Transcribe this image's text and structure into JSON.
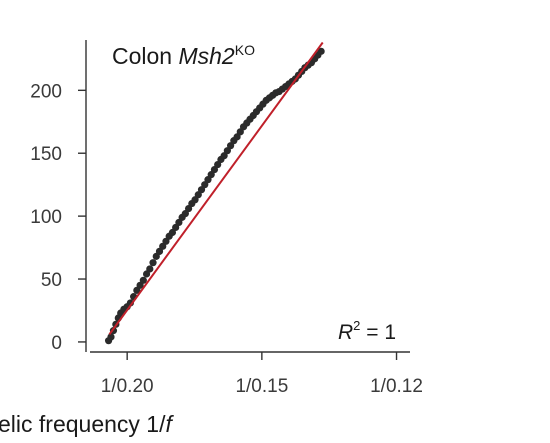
{
  "chart_data": {
    "type": "scatter",
    "title_prefix": "Colon ",
    "title_italic": "Msh2",
    "title_superscript": "KO",
    "xlabel_prefix": "elic frequency 1/",
    "xlabel_italic": "f",
    "ylabel": "",
    "x_ticks": [
      {
        "value": 5.0,
        "label": "1/0.20"
      },
      {
        "value": 6.6667,
        "label": "1/0.15"
      },
      {
        "value": 8.3333,
        "label": "1/0.12"
      }
    ],
    "y_ticks": [
      0,
      50,
      100,
      150,
      200
    ],
    "xlim": [
      4.54,
      8.5
    ],
    "ylim": [
      -8,
      240
    ],
    "annotation_r": "R",
    "annotation_sup": "2",
    "annotation_rest": " = 1",
    "colors": {
      "points": "#2b2b2b",
      "fit": "#c0202a",
      "axis": "#333333"
    },
    "series": [
      {
        "values": [
          [
            4.77,
            1
          ],
          [
            4.8,
            4
          ],
          [
            4.83,
            9
          ],
          [
            4.86,
            14
          ],
          [
            4.89,
            19
          ],
          [
            4.92,
            23
          ],
          [
            4.96,
            26
          ],
          [
            5.0,
            28
          ],
          [
            5.04,
            31
          ],
          [
            5.08,
            36
          ],
          [
            5.12,
            41
          ],
          [
            5.16,
            45
          ],
          [
            5.2,
            49
          ],
          [
            5.24,
            54
          ],
          [
            5.28,
            58
          ],
          [
            5.32,
            63
          ],
          [
            5.36,
            68
          ],
          [
            5.4,
            72
          ],
          [
            5.44,
            76
          ],
          [
            5.48,
            80
          ],
          [
            5.52,
            84
          ],
          [
            5.56,
            87
          ],
          [
            5.6,
            91
          ],
          [
            5.64,
            95
          ],
          [
            5.68,
            99
          ],
          [
            5.72,
            102
          ],
          [
            5.76,
            106
          ],
          [
            5.8,
            110
          ],
          [
            5.84,
            113
          ],
          [
            5.88,
            117
          ],
          [
            5.92,
            121
          ],
          [
            5.96,
            125
          ],
          [
            6.0,
            129
          ],
          [
            6.04,
            133
          ],
          [
            6.08,
            137
          ],
          [
            6.12,
            141
          ],
          [
            6.16,
            145
          ],
          [
            6.2,
            148
          ],
          [
            6.24,
            152
          ],
          [
            6.28,
            156
          ],
          [
            6.32,
            160
          ],
          [
            6.36,
            163
          ],
          [
            6.4,
            167
          ],
          [
            6.44,
            171
          ],
          [
            6.48,
            174
          ],
          [
            6.52,
            177
          ],
          [
            6.56,
            180
          ],
          [
            6.6,
            183
          ],
          [
            6.64,
            186
          ],
          [
            6.68,
            189
          ],
          [
            6.72,
            192
          ],
          [
            6.76,
            194
          ],
          [
            6.8,
            196
          ],
          [
            6.84,
            198
          ],
          [
            6.88,
            199
          ],
          [
            6.92,
            201
          ],
          [
            6.96,
            203
          ],
          [
            7.0,
            205
          ],
          [
            7.04,
            207
          ],
          [
            7.08,
            209
          ],
          [
            7.12,
            212
          ],
          [
            7.16,
            215
          ],
          [
            7.2,
            218
          ],
          [
            7.24,
            220
          ],
          [
            7.28,
            222
          ],
          [
            7.32,
            225
          ],
          [
            7.36,
            228
          ],
          [
            7.4,
            231
          ]
        ]
      }
    ],
    "fit_line": [
      [
        4.78,
        6
      ],
      [
        7.42,
        238
      ]
    ],
    "r_squared": 1
  }
}
